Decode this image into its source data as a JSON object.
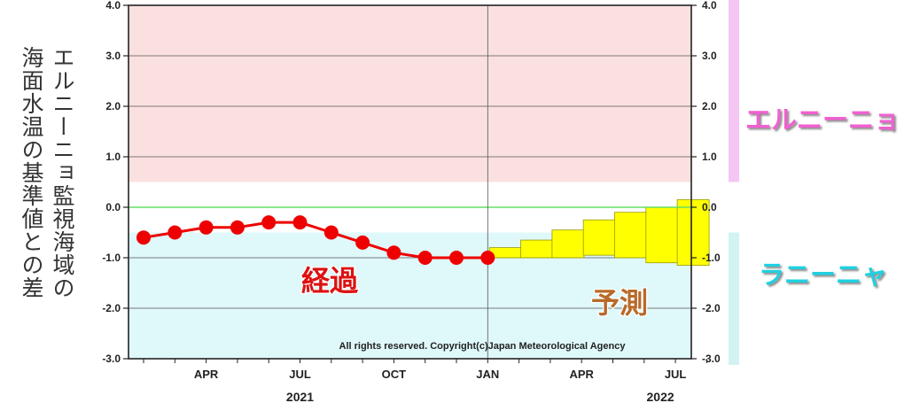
{
  "y_axis_title_lines": [
    "エルニーニョ監視海域の",
    "海面水温の基準値との差"
  ],
  "zone_labels": {
    "el_nino": "エルニーニョ",
    "la_nina": "ラニーニャ"
  },
  "observed_label": "経過",
  "forecast_label": "予測",
  "copyright": "All rights reserved. Copyright(c)Japan Meteorological Agency",
  "colors": {
    "el_nino_zone": "#fbe0e0",
    "la_nina_zone": "#dff8fa",
    "el_nino_bar": "#f3c6f3",
    "la_nina_bar": "#d2f3f3",
    "el_nino_text": "#f060d0",
    "la_nina_text": "#20d0e0",
    "observed": "#ee0000",
    "observed_text": "#dd1111",
    "forecast": "#ffff00",
    "forecast_text": "#b86a2a",
    "zero_line": "#66dd66"
  },
  "chart_data": {
    "type": "line",
    "ylim": [
      -3.0,
      4.0
    ],
    "y_ticks": [
      "4.0",
      "3.0",
      "2.0",
      "1.0",
      "0.0",
      "-1.0",
      "-2.0",
      "-3.0"
    ],
    "x_ticks": [
      "APR",
      "JUL",
      "OCT",
      "JAN",
      "APR",
      "JUL"
    ],
    "years": [
      "2021",
      "2022"
    ],
    "el_nino_threshold": 0.5,
    "la_nina_threshold": -0.5,
    "observed": {
      "months": [
        "2021-02",
        "2021-03",
        "2021-04",
        "2021-05",
        "2021-06",
        "2021-07",
        "2021-08",
        "2021-09",
        "2021-10",
        "2021-11",
        "2021-12",
        "2022-01"
      ],
      "values": [
        -0.6,
        -0.5,
        -0.4,
        -0.4,
        -0.3,
        -0.3,
        -0.5,
        -0.7,
        -0.9,
        -1.0,
        -1.0,
        -1.0
      ]
    },
    "forecast": {
      "months": [
        "2022-01",
        "2022-02",
        "2022-03",
        "2022-04",
        "2022-05",
        "2022-06",
        "2022-07"
      ],
      "low": [
        -1.0,
        -1.0,
        -1.0,
        -0.95,
        -1.0,
        -1.1,
        -1.15
      ],
      "high": [
        -0.8,
        -0.65,
        -0.45,
        -0.25,
        -0.1,
        0.0,
        0.15
      ]
    }
  }
}
